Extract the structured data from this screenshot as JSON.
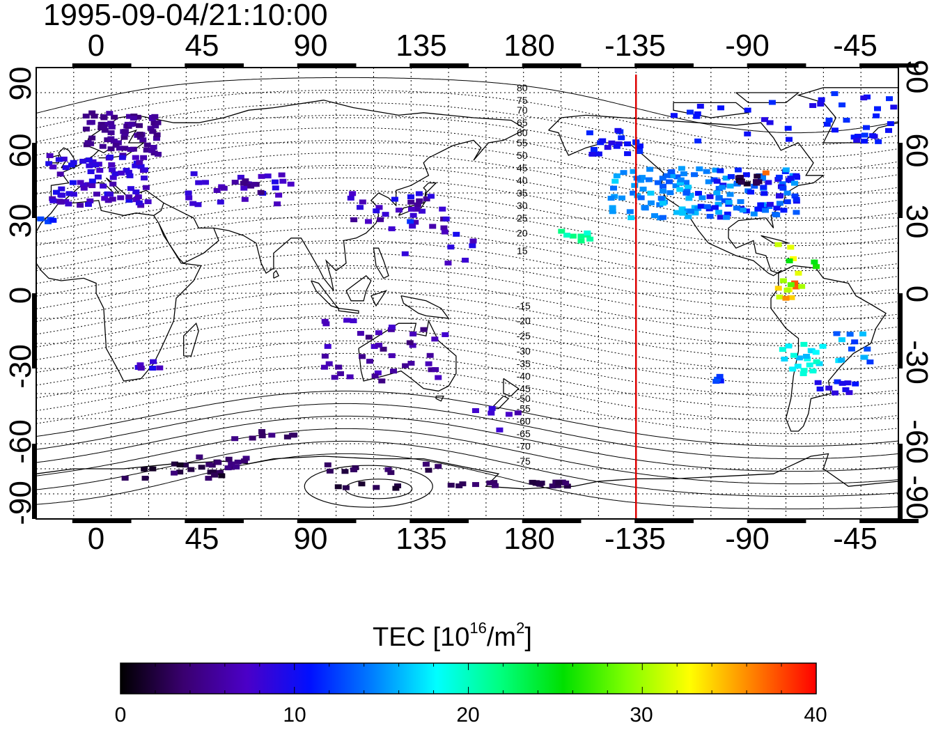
{
  "title": "1995-09-04/21:10:00",
  "map": {
    "lon_ticks": [
      "0",
      "45",
      "90",
      "135",
      "180",
      "-135",
      "-90",
      "-45"
    ],
    "lat_ticks": [
      "90",
      "60",
      "30",
      "0",
      "-30",
      "-60",
      "-90"
    ],
    "contour_labels_north": [
      "80",
      "75",
      "70",
      "65",
      "60",
      "55",
      "50",
      "45",
      "40",
      "35",
      "30",
      "25",
      "20",
      "15"
    ],
    "contour_labels_south": [
      "-15",
      "-20",
      "-25",
      "-30",
      "-35",
      "-40",
      "-45",
      "-50",
      "-55",
      "-60",
      "-65",
      "-70",
      "-75"
    ],
    "lon_range": [
      -15,
      330
    ],
    "lat_range": [
      -90,
      90
    ],
    "terminator_lon": -135,
    "terminator_color": "#dd0000"
  },
  "colorbar": {
    "title_main": "TEC  [10",
    "title_exp": "16",
    "title_mid": "/m",
    "title_exp2": "2",
    "title_end": "]",
    "ticks": [
      "0",
      "10",
      "20",
      "30",
      "40"
    ],
    "range": [
      0,
      40
    ],
    "colors": [
      "#000000",
      "#3a0070",
      "#4b00c8",
      "#0010ff",
      "#0080ff",
      "#00ffff",
      "#00ff80",
      "#00e000",
      "#80ff00",
      "#ffff00",
      "#ff8000",
      "#ff0000"
    ]
  }
}
